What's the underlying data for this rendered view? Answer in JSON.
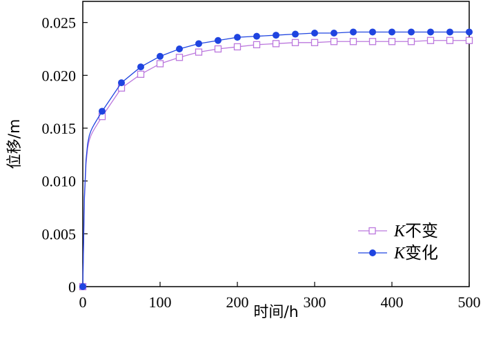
{
  "chart_data": {
    "type": "line",
    "xlabel": "时间/h",
    "ylabel": "位移/m",
    "xlim": [
      0,
      500
    ],
    "ylim": [
      0,
      0.027
    ],
    "x_ticks": [
      0,
      100,
      200,
      300,
      400,
      500
    ],
    "x_tick_labels": [
      "0",
      "100",
      "200",
      "300",
      "400",
      "500"
    ],
    "y_ticks": [
      0,
      0.005,
      0.01,
      0.015,
      0.02,
      0.025
    ],
    "y_tick_labels": [
      "0",
      "0.005",
      "0.010",
      "0.015",
      "0.020",
      "0.025"
    ],
    "grid": false,
    "legend_position": "bottom-right",
    "x": [
      0,
      25,
      50,
      75,
      100,
      125,
      150,
      175,
      200,
      225,
      250,
      275,
      300,
      325,
      350,
      375,
      400,
      425,
      450,
      475,
      500
    ],
    "series": [
      {
        "name_k": "K",
        "name_rest": "不变",
        "color": "#bb77dd",
        "marker": "open-square",
        "values": [
          0,
          0.0161,
          0.0188,
          0.0201,
          0.0211,
          0.0217,
          0.0222,
          0.0225,
          0.0227,
          0.0229,
          0.023,
          0.0231,
          0.0231,
          0.0232,
          0.0232,
          0.0232,
          0.0232,
          0.0232,
          0.0233,
          0.0233,
          0.0233
        ]
      },
      {
        "name_k": "K",
        "name_rest": "变化",
        "color": "#1f44e0",
        "marker": "filled-circle",
        "values": [
          0,
          0.0166,
          0.0193,
          0.0208,
          0.0218,
          0.0225,
          0.023,
          0.0233,
          0.0236,
          0.0237,
          0.0238,
          0.0239,
          0.024,
          0.024,
          0.0241,
          0.0241,
          0.0241,
          0.0241,
          0.0241,
          0.0241,
          0.0241
        ]
      }
    ]
  }
}
